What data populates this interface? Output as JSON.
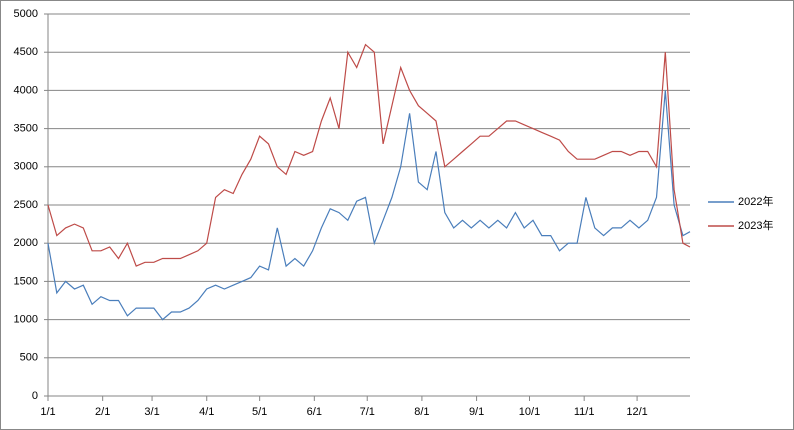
{
  "chart_data": {
    "type": "line",
    "xlim": [
      0,
      364
    ],
    "xticks": [
      {
        "value": 0,
        "label": "1/1"
      },
      {
        "value": 31,
        "label": "2/1"
      },
      {
        "value": 59,
        "label": "3/1"
      },
      {
        "value": 90,
        "label": "4/1"
      },
      {
        "value": 120,
        "label": "5/1"
      },
      {
        "value": 151,
        "label": "6/1"
      },
      {
        "value": 181,
        "label": "7/1"
      },
      {
        "value": 212,
        "label": "8/1"
      },
      {
        "value": 243,
        "label": "9/1"
      },
      {
        "value": 273,
        "label": "10/1"
      },
      {
        "value": 304,
        "label": "11/1"
      },
      {
        "value": 334,
        "label": "12/1"
      }
    ],
    "ylim": [
      0,
      5000
    ],
    "yticks": [
      0,
      500,
      1000,
      1500,
      2000,
      2500,
      3000,
      3500,
      4000,
      4500,
      5000
    ],
    "grid": true,
    "legend": "right",
    "x": [
      0,
      5,
      10,
      15,
      20,
      25,
      30,
      35,
      40,
      45,
      50,
      55,
      60,
      65,
      70,
      75,
      80,
      85,
      90,
      95,
      100,
      105,
      110,
      115,
      120,
      125,
      130,
      135,
      140,
      145,
      150,
      155,
      160,
      165,
      170,
      175,
      180,
      185,
      190,
      195,
      200,
      205,
      210,
      215,
      220,
      225,
      230,
      235,
      240,
      245,
      250,
      255,
      260,
      265,
      270,
      275,
      280,
      285,
      290,
      295,
      300,
      305,
      310,
      315,
      320,
      325,
      330,
      335,
      340,
      345,
      350,
      355,
      360,
      364
    ],
    "series": [
      {
        "name": "2022年",
        "color": "#4a7ebb",
        "values": [
          2000,
          1350,
          1500,
          1400,
          1450,
          1200,
          1300,
          1250,
          1250,
          1050,
          1150,
          1150,
          1150,
          1000,
          1100,
          1100,
          1150,
          1250,
          1400,
          1450,
          1400,
          1450,
          1500,
          1550,
          1700,
          1650,
          2200,
          1700,
          1800,
          1700,
          1900,
          2200,
          2450,
          2400,
          2300,
          2550,
          2600,
          2000,
          2300,
          2600,
          3000,
          3700,
          2800,
          2700,
          3200,
          2400,
          2200,
          2300,
          2200,
          2300,
          2200,
          2300,
          2200,
          2400,
          2200,
          2300,
          2100,
          2100,
          1900,
          2000,
          2000,
          2600,
          2200,
          2100,
          2200,
          2200,
          2300,
          2200,
          2300,
          2600,
          4000,
          2500,
          2100,
          2150
        ]
      },
      {
        "name": "2023年",
        "color": "#be4b48",
        "values": [
          2500,
          2100,
          2200,
          2250,
          2200,
          1900,
          1900,
          1950,
          1800,
          2000,
          1700,
          1750,
          1750,
          1800,
          1800,
          1800,
          1850,
          1900,
          2000,
          2600,
          2700,
          2650,
          2900,
          3100,
          3400,
          3300,
          3000,
          2900,
          3200,
          3150,
          3200,
          3600,
          3900,
          3500,
          4500,
          4300,
          4600,
          4500,
          3300,
          3800,
          4300,
          4000,
          3800,
          3700,
          3600,
          3000,
          3100,
          3200,
          3300,
          3400,
          3400,
          3500,
          3600,
          3600,
          3550,
          3500,
          3450,
          3400,
          3350,
          3200,
          3100,
          3100,
          3100,
          3150,
          3200,
          3200,
          3150,
          3200,
          3200,
          3000,
          4500,
          2700,
          2000,
          1950
        ]
      }
    ]
  }
}
